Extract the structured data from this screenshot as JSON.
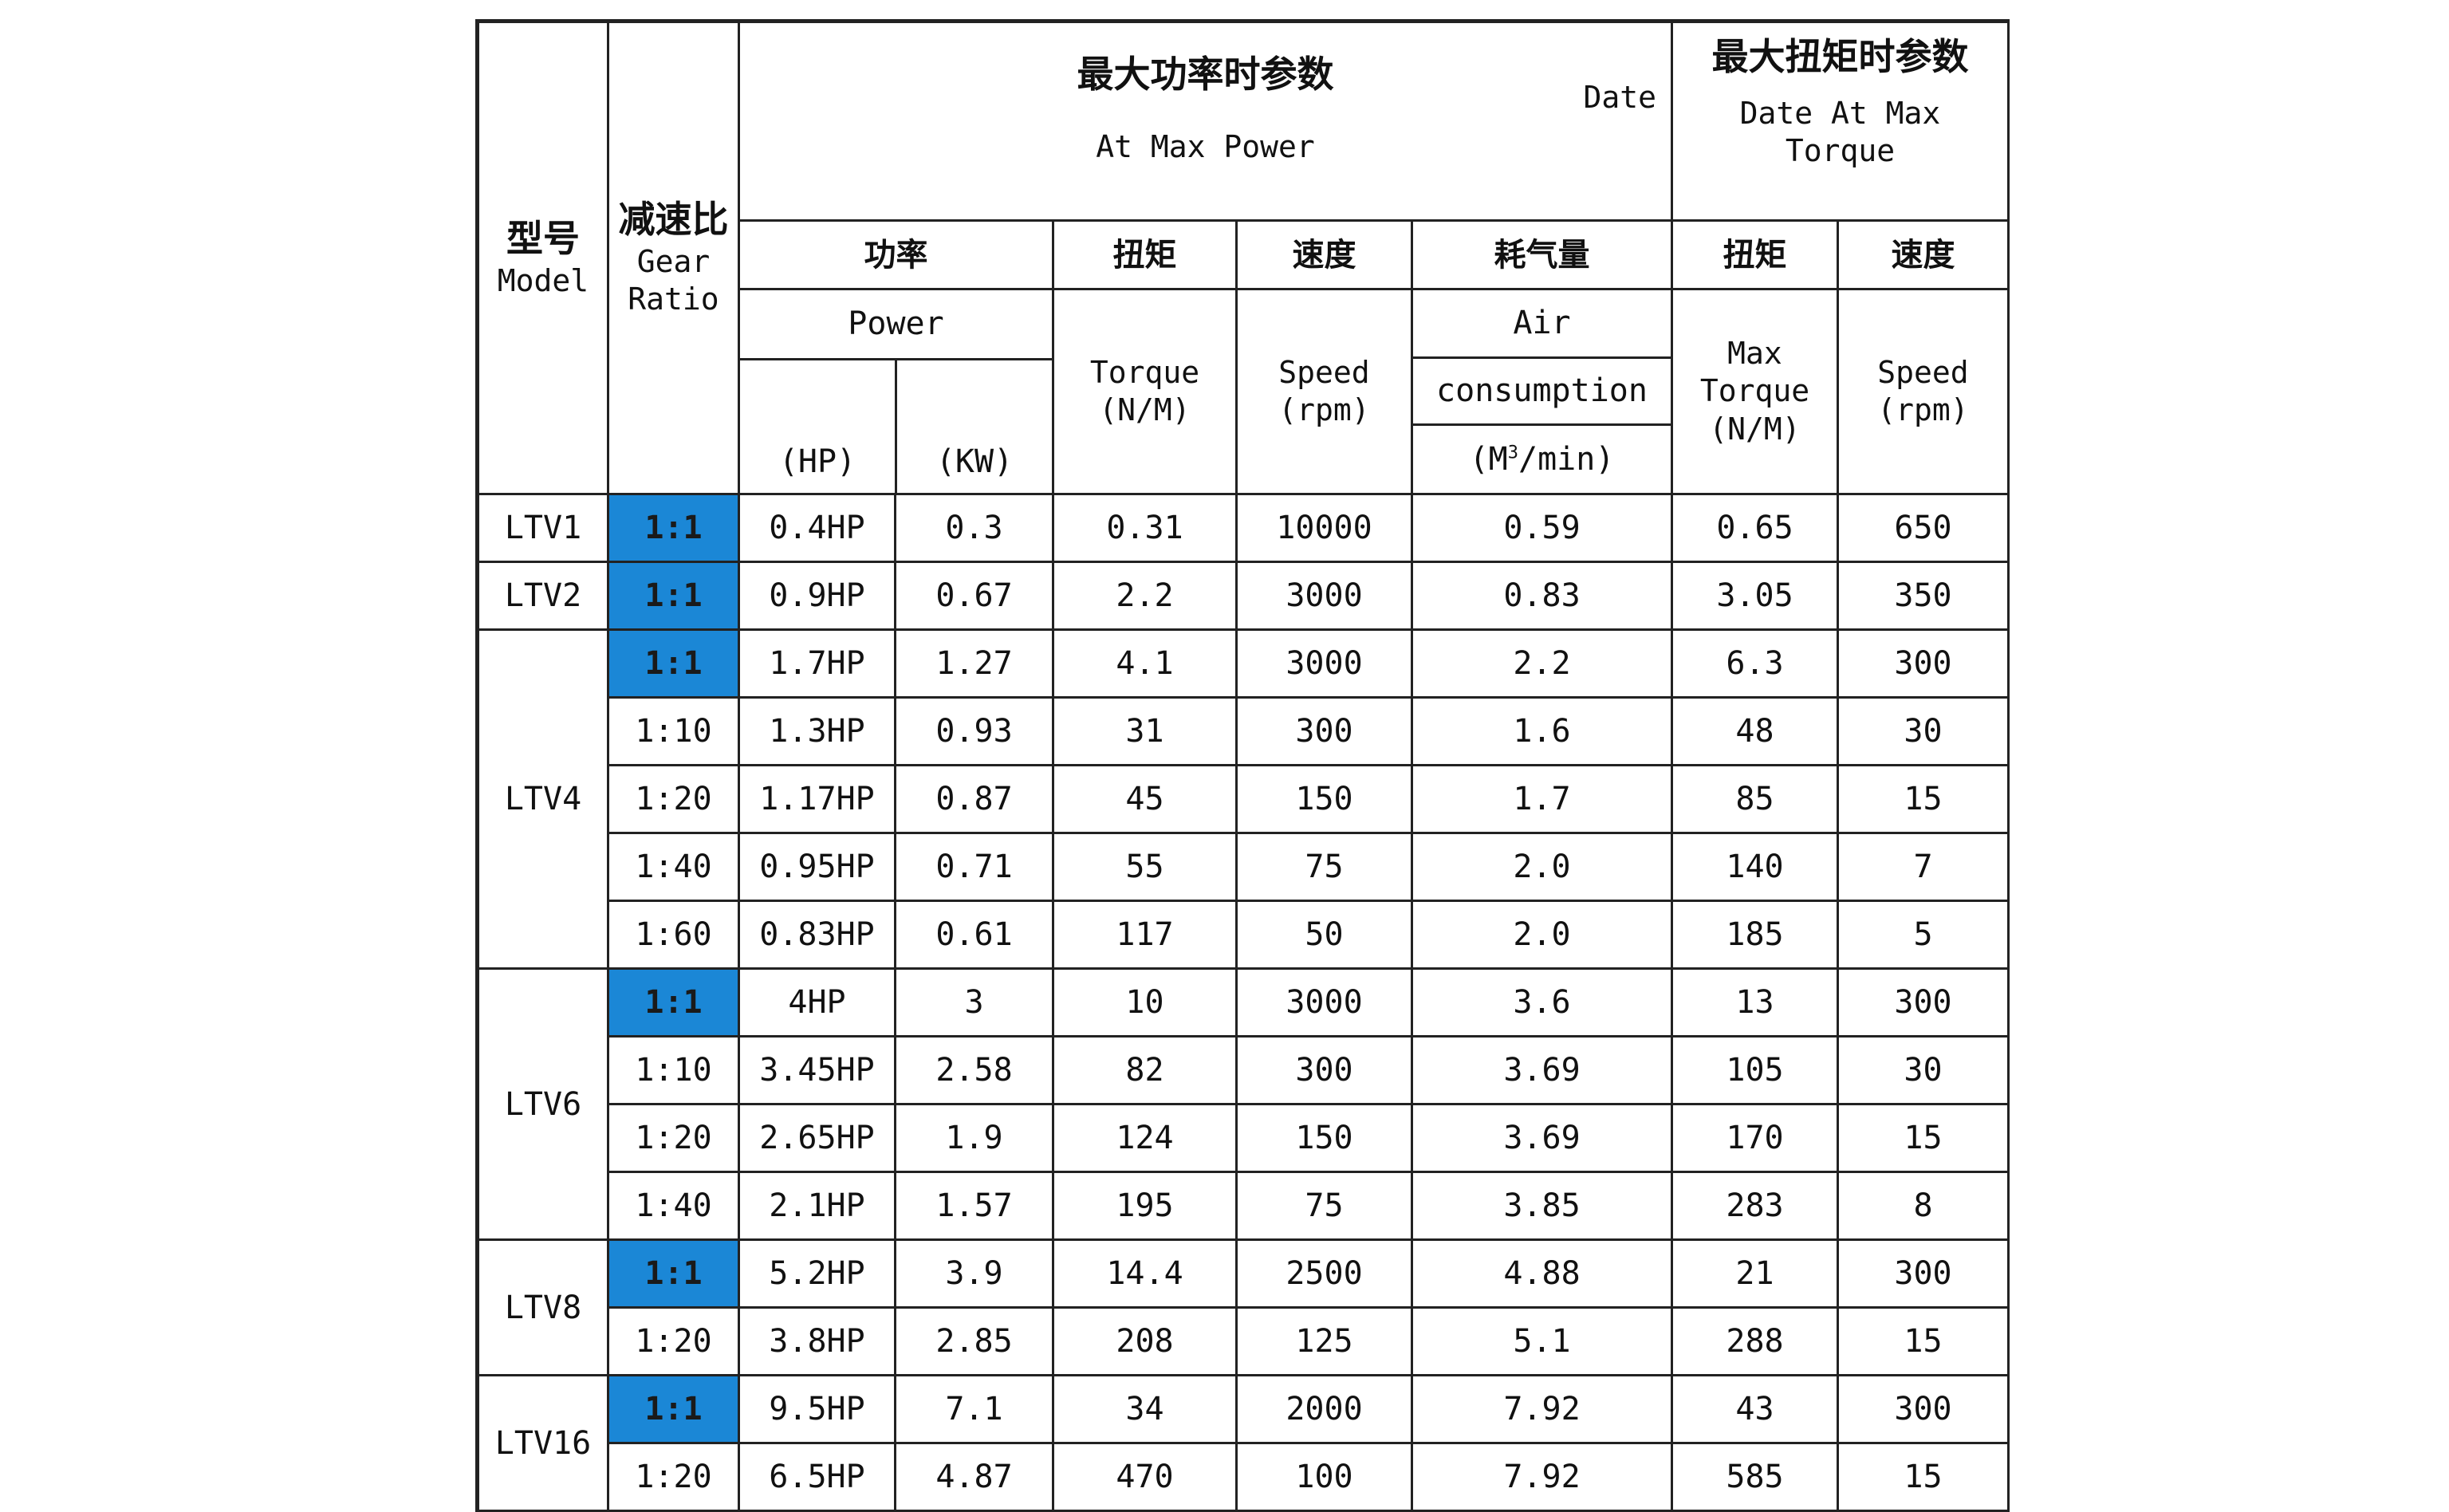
{
  "headers": {
    "model_zh": "型号",
    "model_en": "Model",
    "ratio_zh": "减速比",
    "ratio_en_1": "Gear",
    "ratio_en_2": "Ratio",
    "maxpower_zh": "最大功率时参数",
    "maxpower_date": "Date",
    "maxpower_en": "At Max Power",
    "maxtorque_zh": "最大扭矩时参数",
    "maxtorque_en_1": "Date At Max",
    "maxtorque_en_2": "Torque",
    "power_zh": "功率",
    "power_en": "Power",
    "power_hp": "(HP)",
    "power_kw": "(KW)",
    "torque_zh": "扭矩",
    "torque_en": "Torque",
    "torque_unit": "(N/M)",
    "speed_zh": "速度",
    "speed_en": "Speed",
    "speed_unit": "(rpm)",
    "air_zh": "耗气量",
    "air_en_1": "Air",
    "air_en_2": "consumption",
    "air_unit_pre": "(M",
    "air_unit_sup": "3",
    "air_unit_post": "/min)",
    "mt_torque_zh": "扭矩",
    "mt_torque_en_1": "Max",
    "mt_torque_en_2": "Torque",
    "mt_torque_unit": "(N/M)",
    "mt_speed_zh": "速度",
    "mt_speed_en": "Speed",
    "mt_speed_unit": "(rpm)"
  },
  "highlight_color": "#1b87d6",
  "rows": [
    {
      "model": "LTV1",
      "ratio": "1:1",
      "hp": "0.4HP",
      "kw": "0.3",
      "torque": "0.31",
      "speed": "10000",
      "air": "0.59",
      "max_torque": "0.65",
      "max_speed": "650"
    },
    {
      "model": "LTV2",
      "ratio": "1:1",
      "hp": "0.9HP",
      "kw": "0.67",
      "torque": "2.2",
      "speed": "3000",
      "air": "0.83",
      "max_torque": "3.05",
      "max_speed": "350"
    },
    {
      "model": "LTV4",
      "ratio": "1:1",
      "hp": "1.7HP",
      "kw": "1.27",
      "torque": "4.1",
      "speed": "3000",
      "air": "2.2",
      "max_torque": "6.3",
      "max_speed": "300"
    },
    {
      "model": "LTV4",
      "ratio": "1:10",
      "hp": "1.3HP",
      "kw": "0.93",
      "torque": "31",
      "speed": "300",
      "air": "1.6",
      "max_torque": "48",
      "max_speed": "30"
    },
    {
      "model": "LTV4",
      "ratio": "1:20",
      "hp": "1.17HP",
      "kw": "0.87",
      "torque": "45",
      "speed": "150",
      "air": "1.7",
      "max_torque": "85",
      "max_speed": "15"
    },
    {
      "model": "LTV4",
      "ratio": "1:40",
      "hp": "0.95HP",
      "kw": "0.71",
      "torque": "55",
      "speed": "75",
      "air": "2.0",
      "max_torque": "140",
      "max_speed": "7"
    },
    {
      "model": "LTV4",
      "ratio": "1:60",
      "hp": "0.83HP",
      "kw": "0.61",
      "torque": "117",
      "speed": "50",
      "air": "2.0",
      "max_torque": "185",
      "max_speed": "5"
    },
    {
      "model": "LTV6",
      "ratio": "1:1",
      "hp": "4HP",
      "kw": "3",
      "torque": "10",
      "speed": "3000",
      "air": "3.6",
      "max_torque": "13",
      "max_speed": "300"
    },
    {
      "model": "LTV6",
      "ratio": "1:10",
      "hp": "3.45HP",
      "kw": "2.58",
      "torque": "82",
      "speed": "300",
      "air": "3.69",
      "max_torque": "105",
      "max_speed": "30"
    },
    {
      "model": "LTV6",
      "ratio": "1:20",
      "hp": "2.65HP",
      "kw": "1.9",
      "torque": "124",
      "speed": "150",
      "air": "3.69",
      "max_torque": "170",
      "max_speed": "15"
    },
    {
      "model": "LTV6",
      "ratio": "1:40",
      "hp": "2.1HP",
      "kw": "1.57",
      "torque": "195",
      "speed": "75",
      "air": "3.85",
      "max_torque": "283",
      "max_speed": "8"
    },
    {
      "model": "LTV8",
      "ratio": "1:1",
      "hp": "5.2HP",
      "kw": "3.9",
      "torque": "14.4",
      "speed": "2500",
      "air": "4.88",
      "max_torque": "21",
      "max_speed": "300"
    },
    {
      "model": "LTV8",
      "ratio": "1:20",
      "hp": "3.8HP",
      "kw": "2.85",
      "torque": "208",
      "speed": "125",
      "air": "5.1",
      "max_torque": "288",
      "max_speed": "15"
    },
    {
      "model": "LTV16",
      "ratio": "1:1",
      "hp": "9.5HP",
      "kw": "7.1",
      "torque": "34",
      "speed": "2000",
      "air": "7.92",
      "max_torque": "43",
      "max_speed": "300"
    },
    {
      "model": "LTV16",
      "ratio": "1:20",
      "hp": "6.5HP",
      "kw": "4.87",
      "torque": "470",
      "speed": "100",
      "air": "7.92",
      "max_torque": "585",
      "max_speed": "15"
    }
  ]
}
